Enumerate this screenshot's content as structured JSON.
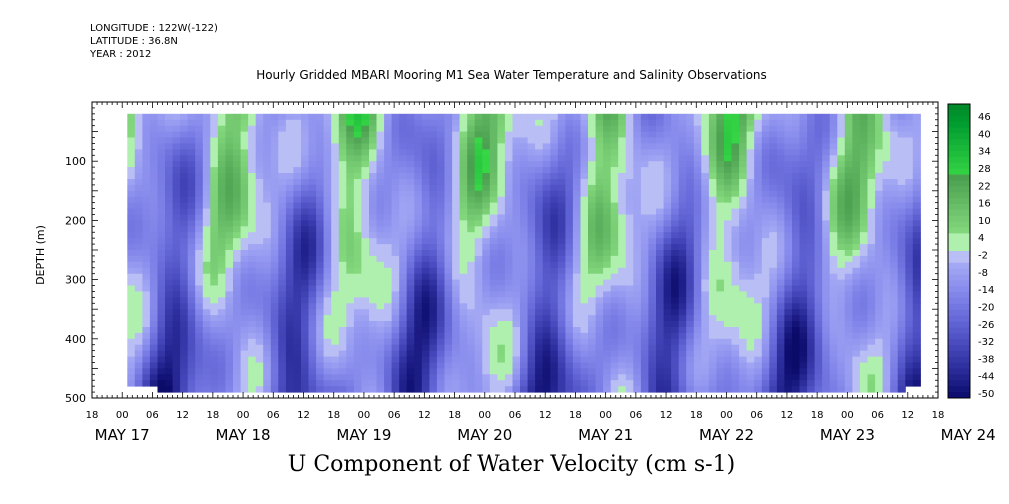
{
  "meta": {
    "longitude": "LONGITUDE : 122W(-122)",
    "latitude": "LATITUDE : 36.8N",
    "year": "YEAR : 2012"
  },
  "chart_data": {
    "type": "heatmap",
    "title": "Hourly Gridded MBARI Mooring M1 Sea Water Temperature and Salinity Observations",
    "xlabel": "U Component of Water Velocity (cm s-1)",
    "ylabel": "DEPTH (m)",
    "x_unit": "hours since MAY 17 18:00, 2012",
    "xlim": [
      0,
      168
    ],
    "ylim": [
      500,
      0
    ],
    "y_ticks": [
      100,
      200,
      300,
      400,
      500
    ],
    "x_hour_ticks": [
      "18",
      "00",
      "06",
      "12",
      "18",
      "00",
      "06",
      "12",
      "18",
      "00",
      "06",
      "12",
      "18",
      "00",
      "06",
      "12",
      "18",
      "00",
      "06",
      "12",
      "18",
      "00",
      "06",
      "12",
      "18",
      "00",
      "06",
      "12",
      "18"
    ],
    "x_date_labels": [
      {
        "label": "MAY 17",
        "hour": 6
      },
      {
        "label": "MAY 18",
        "hour": 6
      },
      {
        "label": "MAY 19",
        "hour": 6
      },
      {
        "label": "MAY 20",
        "hour": 6
      },
      {
        "label": "MAY 21",
        "hour": 6
      },
      {
        "label": "MAY 22",
        "hour": 6
      },
      {
        "label": "MAY 23",
        "hour": 6
      },
      {
        "label": "MAY 24",
        "hour": 6
      }
    ],
    "colorbar": {
      "min": -50,
      "max": 50,
      "labels": [
        "46",
        "40",
        "34",
        "28",
        "22",
        "16",
        "10",
        "4",
        "-2",
        "-8",
        "-14",
        "-20",
        "-26",
        "-32",
        "-38",
        "-44",
        "-50"
      ]
    },
    "grid": false,
    "legend": "right colorbar"
  }
}
